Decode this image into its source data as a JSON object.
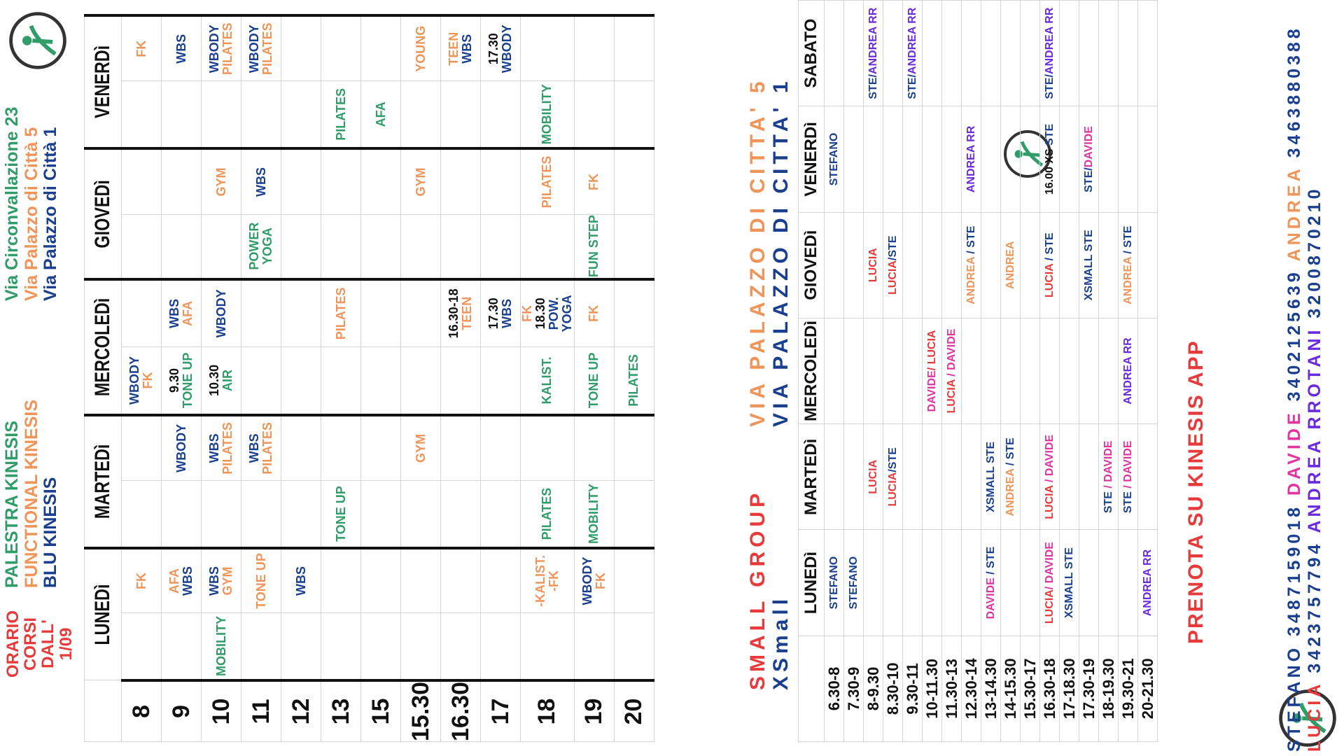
{
  "header": {
    "title_lines": [
      "ORARIO CORSI",
      "DALL' 1/09"
    ],
    "brands": [
      {
        "label": "PALESTRA KINESIS",
        "color": "#2f9c6a"
      },
      {
        "label": "FUNCTIONAL KINESIS",
        "color": "#f0955a"
      },
      {
        "label": "BLU KINESIS",
        "color": "#1a3f8f"
      }
    ],
    "addresses": [
      {
        "label": "Via Circonvallazione 23",
        "color": "#2f9c6a"
      },
      {
        "label": "Via Palazzo di Città 5",
        "color": "#f0955a"
      },
      {
        "label": "Via Palazzo di Città 1",
        "color": "#1a3f8f"
      }
    ]
  },
  "timetable": {
    "days": [
      "LUNEDì",
      "MARTEDì",
      "MERCOLEDì",
      "GIOVEDì",
      "VENERDì"
    ],
    "hours": [
      "8",
      "9",
      "10",
      "11",
      "12",
      "13",
      "15",
      "15.30",
      "16.30",
      "17",
      "18",
      "19",
      "20"
    ],
    "rows": [
      [
        [],
        [
          [
            [
              "FK",
              "o"
            ]
          ]
        ],
        [],
        [],
        [
          [
            [
              "WBODY",
              "b"
            ],
            [
              "FK",
              "o"
            ]
          ]
        ],
        [],
        [],
        [],
        [],
        [
          [
            [
              "FK",
              "o"
            ]
          ]
        ]
      ],
      [
        [],
        [
          [
            [
              "AFA",
              "o"
            ],
            [
              "WBS",
              "b"
            ]
          ]
        ],
        [],
        [
          [
            [
              "WBODY",
              "b"
            ]
          ]
        ],
        [
          [
            [
              "9.30",
              "k"
            ],
            [
              "TONE UP",
              "g"
            ]
          ]
        ],
        [
          [
            [
              "WBS",
              "b"
            ],
            [
              "AFA",
              "o"
            ]
          ]
        ],
        [],
        [],
        [],
        [
          [
            [
              "WBS",
              "b"
            ]
          ]
        ]
      ],
      [
        [
          [
            [
              "MOBILITY",
              "g"
            ]
          ]
        ],
        [
          [
            [
              "WBS",
              "b"
            ],
            [
              "GYM",
              "o"
            ]
          ]
        ],
        [],
        [
          [
            [
              "WBS",
              "b"
            ],
            [
              "PILATES",
              "o"
            ]
          ]
        ],
        [
          [
            [
              "10.30",
              "k"
            ],
            [
              "AIR",
              "g"
            ]
          ]
        ],
        [
          [
            [
              "WBODY",
              "b"
            ]
          ]
        ],
        [],
        [
          [
            [
              "GYM",
              "o"
            ]
          ]
        ],
        [],
        [
          [
            [
              "WBODY",
              "b"
            ],
            [
              "PILATES",
              "o"
            ]
          ]
        ]
      ],
      [
        [],
        [
          [
            [
              "TONE UP",
              "o"
            ]
          ]
        ],
        [],
        [
          [
            [
              "WBS",
              "b"
            ],
            [
              "PILATES",
              "o"
            ]
          ]
        ],
        [],
        [],
        [
          [
            [
              "POWER",
              "g"
            ],
            [
              "YOGA",
              "g"
            ]
          ]
        ],
        [
          [
            [
              "WBS",
              "b"
            ]
          ]
        ],
        [],
        [
          [
            [
              "WBODY",
              "b"
            ],
            [
              "PILATES",
              "o"
            ]
          ]
        ]
      ],
      [
        [],
        [
          [
            [
              "WBS",
              "b"
            ]
          ]
        ],
        [],
        [],
        [],
        [],
        [],
        [],
        [],
        []
      ],
      [
        [],
        [],
        [
          [
            [
              "TONE UP",
              "g"
            ]
          ]
        ],
        [],
        [],
        [
          [
            [
              "PILATES",
              "o"
            ]
          ]
        ],
        [],
        [],
        [
          [
            [
              "PILATES",
              "g"
            ]
          ]
        ],
        []
      ],
      [
        [],
        [],
        [],
        [],
        [],
        [],
        [],
        [],
        [
          [
            [
              "AFA",
              "g"
            ]
          ]
        ],
        []
      ],
      [
        [],
        [],
        [],
        [
          [
            [
              "GYM",
              "o"
            ]
          ]
        ],
        [],
        [],
        [],
        [
          [
            [
              "GYM",
              "o"
            ]
          ]
        ],
        [],
        [
          [
            [
              "YOUNG",
              "o"
            ]
          ]
        ]
      ],
      [
        [],
        [],
        [],
        [],
        [],
        [
          [
            [
              "16.30-18",
              "k"
            ],
            [
              "TEEN",
              "o"
            ]
          ]
        ],
        [],
        [],
        [],
        [
          [
            [
              "TEEN",
              "o"
            ],
            [
              "WBS",
              "b"
            ]
          ]
        ]
      ],
      [
        [],
        [],
        [],
        [],
        [],
        [
          [
            [
              "17.30",
              "k"
            ],
            [
              "WBS",
              "b"
            ]
          ]
        ],
        [],
        [],
        [],
        [
          [
            [
              "17.30",
              "k"
            ],
            [
              "WBODY",
              "b"
            ]
          ]
        ]
      ],
      [
        [],
        [
          [
            [
              "-KALIST.",
              "o"
            ],
            [
              "-FK",
              "o"
            ]
          ]
        ],
        [
          [
            [
              "PILATES",
              "g"
            ]
          ]
        ],
        [],
        [
          [
            [
              "KALIST.",
              "g"
            ]
          ]
        ],
        [
          [
            [
              "FK",
              "o"
            ],
            [
              "18.30",
              "k"
            ],
            [
              "POW. YOGA",
              "b"
            ]
          ]
        ],
        [],
        [
          [
            [
              "PILATES",
              "o"
            ]
          ]
        ],
        [
          [
            [
              "MOBILITY",
              "g"
            ]
          ]
        ],
        []
      ],
      [
        [],
        [
          [
            [
              "WBODY",
              "b"
            ],
            [
              "FK",
              "o"
            ]
          ]
        ],
        [
          [
            [
              "MOBILITY",
              "g"
            ]
          ]
        ],
        [],
        [
          [
            [
              "TONE UP",
              "g"
            ]
          ]
        ],
        [
          [
            [
              "FK",
              "o"
            ]
          ]
        ],
        [
          [
            [
              "FUN STEP",
              "g"
            ]
          ]
        ],
        [
          [
            [
              "FK",
              "o"
            ]
          ]
        ],
        [],
        []
      ],
      [
        [],
        [],
        [],
        [],
        [
          [
            [
              "PILATES",
              "g"
            ]
          ]
        ],
        [],
        [],
        [],
        [],
        []
      ]
    ]
  },
  "small_group": {
    "title": "SMALL GROUP",
    "title_color": "#e83a3a",
    "subtitle": "XSmall",
    "subtitle_color": "#1a3f8f",
    "location_1": "VIA PALAZZO DI CITTA' 5",
    "location_1_color": "#f0955a",
    "location_2": "VIA PALAZZO DI CITTA' 1",
    "location_2_color": "#1a3f8f",
    "days": [
      "LUNEDì",
      "MARTEDì",
      "MERCOLEDì",
      "GIOVEDì",
      "VENERDì",
      "SABATO"
    ],
    "slots": [
      "6.30-8",
      "7.30-9",
      "8-9.30",
      "8.30-10",
      "9.30-11",
      "10-11.30",
      "11.30-13",
      "12.30-14",
      "13-14.30",
      "14-15.30",
      "15.30-17",
      "16.30-18",
      "17-18.30",
      "17.30-19",
      "18-19.30",
      "19.30-21",
      "20-21.30"
    ],
    "rows": [
      [
        [
          [
            "STEFANO",
            "b"
          ]
        ],
        [],
        [],
        [],
        [
          [
            "STEFANO",
            "b"
          ]
        ],
        []
      ],
      [
        [
          [
            "STEFANO",
            "b"
          ]
        ],
        [],
        [],
        [],
        [],
        []
      ],
      [
        [],
        [
          [
            "LUCIA",
            "r"
          ]
        ],
        [],
        [
          [
            "LUCIA",
            "r"
          ]
        ],
        [],
        [
          [
            "STE/",
            "b"
          ],
          [
            "ANDREA RR",
            "v"
          ]
        ]
      ],
      [
        [],
        [
          [
            "LUCIA",
            "r"
          ],
          [
            "/STE",
            "b"
          ]
        ],
        [],
        [
          [
            "LUCIA",
            "r"
          ],
          [
            "/STE",
            "b"
          ]
        ],
        [],
        []
      ],
      [
        [],
        [],
        [],
        [],
        [],
        [
          [
            "STE/",
            "b"
          ],
          [
            "ANDREA RR",
            "v"
          ]
        ]
      ],
      [
        [],
        [],
        [
          [
            "DAVIDE",
            "p"
          ],
          [
            "/ LUCIA",
            "r"
          ]
        ],
        [],
        [],
        []
      ],
      [
        [],
        [],
        [
          [
            "LUCIA",
            "r"
          ],
          [
            " / DAVIDE",
            "p"
          ]
        ],
        [],
        [],
        []
      ],
      [
        [],
        [],
        [],
        [
          [
            "ANDREA",
            "o"
          ],
          [
            " / STE",
            "b"
          ]
        ],
        [
          [
            "ANDREA RR",
            "v"
          ]
        ],
        []
      ],
      [
        [
          [
            "DAVIDE",
            "p"
          ],
          [
            " / STE",
            "b"
          ]
        ],
        [
          [
            "XSMALL STE",
            "b"
          ]
        ],
        [],
        [],
        [],
        []
      ],
      [
        [],
        [
          [
            "ANDREA",
            "o"
          ],
          [
            " / STE",
            "b"
          ]
        ],
        [],
        [
          [
            "ANDREA",
            "o"
          ]
        ],
        [],
        []
      ],
      [
        [],
        [],
        [],
        [],
        [],
        []
      ],
      [
        [
          [
            "LUCIA",
            "r"
          ],
          [
            "/ DAVIDE",
            "p"
          ]
        ],
        [
          [
            "LUCIA",
            "r"
          ],
          [
            " / DAVIDE",
            "p"
          ]
        ],
        [],
        [
          [
            "LUCIA",
            "r"
          ],
          [
            " / STE",
            "b"
          ]
        ],
        [
          [
            "16.00 XS",
            "k"
          ],
          [
            "  STE",
            "b"
          ]
        ],
        [
          [
            "STE/",
            "b"
          ],
          [
            "ANDREA RR",
            "v"
          ]
        ]
      ],
      [
        [
          [
            "XSMALL STE",
            "b"
          ]
        ],
        [],
        [],
        [],
        [],
        []
      ],
      [
        [],
        [],
        [],
        [
          [
            "XSMALL STE",
            "b"
          ]
        ],
        [
          [
            "STE/",
            "b"
          ],
          [
            "DAVIDE",
            "p"
          ]
        ],
        []
      ],
      [
        [],
        [
          [
            "STE",
            "b"
          ],
          [
            " / DAVIDE",
            "p"
          ]
        ],
        [],
        [],
        [],
        []
      ],
      [
        [],
        [
          [
            "STE",
            "b"
          ],
          [
            " / DAVIDE",
            "p"
          ]
        ],
        [
          [
            "ANDREA RR",
            "v"
          ]
        ],
        [
          [
            "ANDREA",
            "o"
          ],
          [
            " / STE",
            "b"
          ]
        ],
        [],
        []
      ],
      [
        [
          [
            "ANDREA RR",
            "v"
          ]
        ],
        [],
        [],
        [],
        [],
        []
      ]
    ]
  },
  "booking": {
    "title": "PRENOTA SU KINESIS APP",
    "title_color": "#e83a3a"
  },
  "contacts": [
    {
      "name": "STEFANO",
      "phone": "3487159018",
      "color": "#1a3f8f"
    },
    {
      "name": "DAVIDE",
      "phone": "3402125639",
      "color": "#e3339f"
    },
    {
      "name": "ANDREA",
      "phone": "3463880388",
      "color": "#f0955a"
    },
    {
      "name": "LUCIA",
      "phone": "3423757794",
      "color": "#e83a3a"
    },
    {
      "name": "ANDREA RROTANI",
      "phone": "3200870210",
      "color": "#6a2be0"
    }
  ],
  "logo": {
    "icon": "kinesis-figure-logo",
    "color": "#2f9c6a"
  }
}
